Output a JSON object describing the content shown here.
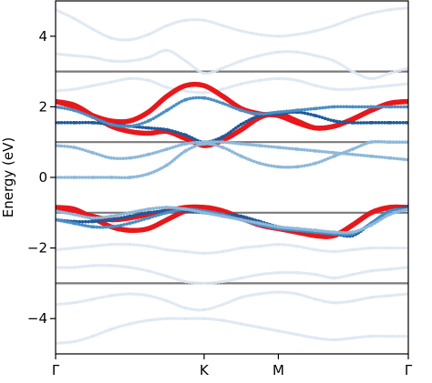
{
  "chart_data": {
    "type": "line",
    "ylabel": "Energy (eV)",
    "ylim": [
      -5,
      5
    ],
    "y_ticks": [
      -4,
      -2,
      0,
      2,
      4
    ],
    "y_tick_labels": [
      "−4",
      "−2",
      "0",
      "2",
      "4"
    ],
    "x_ticks": [
      0,
      4,
      6,
      9.5
    ],
    "x_tick_labels": [
      "Γ",
      "K",
      "M",
      "Γ"
    ],
    "xlim": [
      0,
      9.5
    ],
    "grid": false,
    "reference_lines": {
      "y": [
        3,
        1,
        -1,
        -3
      ],
      "color": "#7a7a7a"
    },
    "series": [
      {
        "style": "thick",
        "color": "#e8171b",
        "x": [
          0,
          0.5,
          1,
          1.5,
          2,
          2.5,
          3,
          3.5,
          4,
          4.5,
          5,
          5.5,
          6,
          6.5,
          7,
          7.5,
          8,
          8.5,
          9,
          9.5
        ],
        "y": [
          2.15,
          2.05,
          1.75,
          1.45,
          1.3,
          1.25,
          1.3,
          1.1,
          0.9,
          1.05,
          1.35,
          1.7,
          1.8,
          1.6,
          1.4,
          1.45,
          1.65,
          1.9,
          2.1,
          2.15
        ]
      },
      {
        "style": "thick",
        "color": "#e8171b",
        "x": [
          0,
          0.5,
          1,
          1.5,
          2,
          2.5,
          3,
          3.5,
          4,
          4.5,
          5,
          5.5,
          6,
          6.5,
          7,
          7.5,
          8,
          8.5,
          9,
          9.5
        ],
        "y": [
          2.15,
          2.0,
          1.75,
          1.6,
          1.6,
          1.85,
          2.3,
          2.6,
          2.6,
          2.3,
          1.95,
          1.8,
          1.75,
          1.55,
          1.4,
          1.45,
          1.65,
          1.9,
          2.1,
          2.15
        ]
      },
      {
        "style": "thick",
        "color": "#e8171b",
        "x": [
          0,
          0.5,
          1,
          1.5,
          2,
          2.5,
          3,
          3.5,
          4,
          4.5,
          5,
          5.5,
          6,
          6.5,
          7,
          7.5,
          8,
          8.5,
          9,
          9.5
        ],
        "y": [
          -0.85,
          -0.9,
          -1.15,
          -1.4,
          -1.5,
          -1.45,
          -1.2,
          -0.95,
          -0.85,
          -0.95,
          -1.15,
          -1.35,
          -1.45,
          -1.55,
          -1.65,
          -1.65,
          -1.35,
          -1.0,
          -0.85,
          -0.85
        ]
      },
      {
        "style": "thick",
        "color": "#e8171b",
        "x": [
          0,
          0.5,
          1,
          1.5,
          2,
          2.5,
          3,
          3.5,
          4,
          4.5,
          5,
          5.5,
          6,
          6.5,
          7,
          7.5,
          8,
          8.5,
          9,
          9.5
        ],
        "y": [
          -0.85,
          -0.95,
          -1.1,
          -1.2,
          -1.15,
          -1.05,
          -0.95,
          -0.85,
          -0.85,
          -0.95,
          -1.15,
          -1.35,
          -1.45,
          -1.55,
          -1.65,
          -1.65,
          -1.35,
          -1.0,
          -0.85,
          -0.85
        ]
      },
      {
        "style": "dots",
        "color": "#1f5a99",
        "x": [
          0,
          0.5,
          1,
          1.5,
          2,
          2.5,
          3,
          3.5,
          4,
          4.5,
          5,
          5.5,
          6,
          6.5,
          7,
          7.5,
          8,
          8.5,
          9,
          9.5
        ],
        "y": [
          1.55,
          1.55,
          1.55,
          1.5,
          1.45,
          1.4,
          1.35,
          1.2,
          1.0,
          1.15,
          1.5,
          1.75,
          1.8,
          1.85,
          1.75,
          1.6,
          1.55,
          1.55,
          1.55,
          1.55
        ]
      },
      {
        "style": "dots",
        "color": "#1f5a99",
        "x": [
          0,
          0.5,
          1,
          1.5,
          2,
          2.5,
          3,
          3.5,
          4,
          4.5,
          5,
          5.5,
          6,
          6.5,
          7,
          7.5,
          8,
          8.5,
          9,
          9.5
        ],
        "y": [
          -1.2,
          -1.25,
          -1.25,
          -1.2,
          -1.1,
          -1.0,
          -0.95,
          -0.95,
          -1.0,
          -1.05,
          -1.1,
          -1.25,
          -1.4,
          -1.5,
          -1.55,
          -1.6,
          -1.65,
          -1.3,
          -0.95,
          -0.85
        ]
      },
      {
        "style": "dots",
        "color": "#4a8fc4",
        "x": [
          0,
          0.5,
          1,
          1.5,
          2,
          2.5,
          3,
          3.5,
          4,
          4.5,
          5,
          5.5,
          6,
          6.5,
          7,
          7.5,
          8,
          8.5,
          9,
          9.5
        ],
        "y": [
          2.0,
          1.9,
          1.7,
          1.5,
          1.45,
          1.6,
          1.9,
          2.2,
          2.25,
          2.1,
          1.9,
          1.8,
          1.85,
          1.9,
          1.95,
          2.0,
          2.0,
          2.0,
          2.0,
          2.0
        ]
      },
      {
        "style": "dots",
        "color": "#4a8fc4",
        "x": [
          0,
          0.5,
          1,
          1.5,
          2,
          2.5,
          3,
          3.5,
          4,
          4.5,
          5,
          5.5,
          6,
          6.5,
          7,
          7.5,
          8,
          8.5,
          9,
          9.5
        ],
        "y": [
          -1.2,
          -1.3,
          -1.4,
          -1.4,
          -1.3,
          -1.15,
          -1.0,
          -0.9,
          -0.95,
          -1.05,
          -1.2,
          -1.35,
          -1.45,
          -1.5,
          -1.55,
          -1.6,
          -1.6,
          -1.3,
          -0.95,
          -0.9
        ]
      },
      {
        "style": "dots",
        "color": "#8db8da",
        "x": [
          0,
          0.5,
          1,
          1.5,
          2,
          2.5,
          3,
          3.5,
          4,
          4.5,
          5,
          5.5,
          6,
          6.5,
          7,
          7.5,
          8,
          8.5,
          9,
          9.5
        ],
        "y": [
          0.9,
          0.85,
          0.7,
          0.55,
          0.55,
          0.65,
          0.8,
          0.95,
          1.0,
          1.0,
          0.95,
          0.9,
          0.85,
          0.8,
          0.75,
          0.7,
          0.65,
          0.6,
          0.55,
          0.5
        ]
      },
      {
        "style": "dots",
        "color": "#8db8da",
        "x": [
          0,
          0.5,
          1,
          1.5,
          2,
          2.5,
          3,
          3.5,
          4,
          4.5,
          5,
          5.5,
          6,
          6.5,
          7,
          7.5,
          8,
          8.5,
          9,
          9.5
        ],
        "y": [
          0.0,
          0.0,
          0.0,
          0.0,
          0.0,
          0.1,
          0.35,
          0.75,
          0.95,
          0.85,
          0.6,
          0.4,
          0.3,
          0.3,
          0.4,
          0.6,
          0.8,
          1.0,
          1.0,
          1.0
        ]
      },
      {
        "style": "dots",
        "color": "#8db8da",
        "x": [
          0,
          0.5,
          1,
          1.5,
          2,
          2.5,
          3,
          3.5,
          4,
          4.5,
          5,
          5.5,
          6,
          6.5,
          7,
          7.5,
          8,
          8.5,
          9,
          9.5
        ],
        "y": [
          -0.95,
          -1.05,
          -1.15,
          -1.1,
          -1.0,
          -0.9,
          -0.85,
          -0.9,
          -1.0,
          -1.1,
          -1.2,
          -1.3,
          -1.4,
          -1.45,
          -1.5,
          -1.55,
          -1.55,
          -1.35,
          -1.05,
          -0.9
        ]
      },
      {
        "style": "dots",
        "color": "#dbe7f3",
        "x": [
          0,
          0.5,
          1,
          1.5,
          2,
          2.5,
          3,
          3.5,
          4,
          4.5,
          5,
          5.5,
          6,
          6.5,
          7,
          7.5,
          8,
          8.5,
          9,
          9.5
        ],
        "y": [
          4.75,
          4.5,
          4.2,
          3.95,
          3.9,
          4.05,
          4.3,
          4.45,
          4.45,
          4.3,
          4.15,
          4.05,
          4.0,
          4.05,
          4.15,
          4.3,
          4.5,
          4.65,
          4.75,
          4.8
        ]
      },
      {
        "style": "dots",
        "color": "#dbe7f3",
        "x": [
          0,
          0.5,
          1,
          1.5,
          2,
          2.5,
          3,
          3.5,
          4,
          4.5,
          5,
          5.5,
          6,
          6.5,
          7,
          7.5,
          8,
          8.5,
          9,
          9.5
        ],
        "y": [
          3.5,
          3.45,
          3.4,
          3.3,
          3.3,
          3.4,
          3.6,
          3.3,
          2.95,
          3.1,
          3.3,
          3.45,
          3.55,
          3.55,
          3.45,
          3.3,
          3.0,
          2.8,
          2.95,
          3.1
        ]
      },
      {
        "style": "dots",
        "color": "#dbe7f3",
        "x": [
          0,
          0.5,
          1,
          1.5,
          2,
          2.5,
          3,
          3.5,
          4,
          4.5,
          5,
          5.5,
          6,
          6.5,
          7,
          7.5,
          8,
          8.5,
          9,
          9.5
        ],
        "y": [
          2.45,
          2.5,
          2.6,
          2.7,
          2.8,
          2.75,
          2.55,
          2.45,
          2.4,
          2.5,
          2.65,
          2.75,
          2.8,
          2.75,
          2.6,
          2.5,
          2.5,
          2.55,
          2.6,
          2.65
        ]
      },
      {
        "style": "dots",
        "color": "#dbe7f3",
        "x": [
          0,
          0.5,
          1,
          1.5,
          2,
          2.5,
          3,
          3.5,
          4,
          4.5,
          5,
          5.5,
          6,
          6.5,
          7,
          7.5,
          8,
          8.5,
          9,
          9.5
        ],
        "y": [
          -2.05,
          -2.0,
          -1.95,
          -1.9,
          -1.9,
          -1.95,
          -2.05,
          -2.1,
          -2.15,
          -2.1,
          -2.0,
          -1.95,
          -1.9,
          -1.95,
          -2.05,
          -2.1,
          -2.05,
          -2.0,
          -2.0,
          -2.0
        ]
      },
      {
        "style": "dots",
        "color": "#dbe7f3",
        "x": [
          0,
          0.5,
          1,
          1.5,
          2,
          2.5,
          3,
          3.5,
          4,
          4.5,
          5,
          5.5,
          6,
          6.5,
          7,
          7.5,
          8,
          8.5,
          9,
          9.5
        ],
        "y": [
          -2.55,
          -2.55,
          -2.5,
          -2.5,
          -2.55,
          -2.65,
          -2.8,
          -2.95,
          -3.0,
          -2.95,
          -2.85,
          -2.75,
          -2.7,
          -2.7,
          -2.75,
          -2.85,
          -2.75,
          -2.65,
          -2.6,
          -2.55
        ]
      },
      {
        "style": "dots",
        "color": "#dbe7f3",
        "x": [
          0,
          0.5,
          1,
          1.5,
          2,
          2.5,
          3,
          3.5,
          4,
          4.5,
          5,
          5.5,
          6,
          6.5,
          7,
          7.5,
          8,
          8.5,
          9,
          9.5
        ],
        "y": [
          -3.6,
          -3.55,
          -3.45,
          -3.35,
          -3.3,
          -3.35,
          -3.5,
          -3.7,
          -3.75,
          -3.6,
          -3.4,
          -3.3,
          -3.25,
          -3.3,
          -3.45,
          -3.55,
          -3.5,
          -3.4,
          -3.35,
          -3.3
        ]
      },
      {
        "style": "dots",
        "color": "#dbe7f3",
        "x": [
          0,
          0.5,
          1,
          1.5,
          2,
          2.5,
          3,
          3.5,
          4,
          4.5,
          5,
          5.5,
          6,
          6.5,
          7,
          7.5,
          8,
          8.5,
          9,
          9.5
        ],
        "y": [
          -4.7,
          -4.65,
          -4.5,
          -4.3,
          -4.15,
          -4.05,
          -4.0,
          -4.0,
          -4.0,
          -4.05,
          -4.15,
          -4.25,
          -4.35,
          -4.45,
          -4.55,
          -4.6,
          -4.55,
          -4.5,
          -4.5,
          -4.5
        ]
      }
    ]
  }
}
